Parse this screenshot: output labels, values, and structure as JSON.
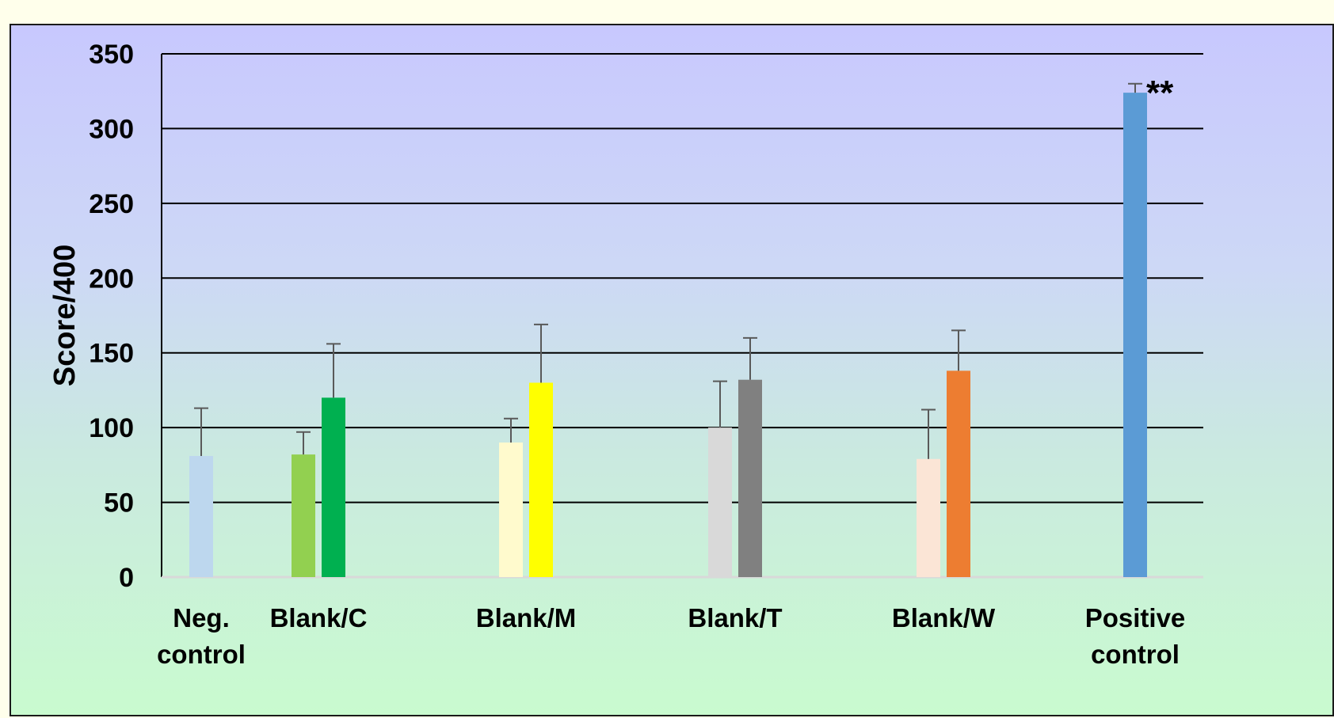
{
  "chart_data": {
    "type": "bar",
    "title": "",
    "xlabel": "",
    "ylabel": "Score/400",
    "ylim": [
      0,
      350
    ],
    "yticks": [
      0,
      50,
      100,
      150,
      200,
      250,
      300,
      350
    ],
    "grid": true,
    "legend": "none",
    "categories": [
      {
        "label": [
          "Neg.",
          "control"
        ],
        "bars": [
          {
            "value": 81,
            "error": 32,
            "color": "#bdd7ee"
          }
        ]
      },
      {
        "label": [
          "Blank/C"
        ],
        "bars": [
          {
            "value": 82,
            "error": 15,
            "color": "#92d050"
          },
          {
            "value": 120,
            "error": 36,
            "color": "#00b050"
          }
        ]
      },
      {
        "label": [
          "Blank/M"
        ],
        "bars": [
          {
            "value": 90,
            "error": 16,
            "color": "#fffacd"
          },
          {
            "value": 130,
            "error": 39,
            "color": "#ffff00"
          }
        ]
      },
      {
        "label": [
          "Blank/T"
        ],
        "bars": [
          {
            "value": 100,
            "error": 31,
            "color": "#d9d9d9"
          },
          {
            "value": 132,
            "error": 28,
            "color": "#808080"
          }
        ]
      },
      {
        "label": [
          "Blank/W"
        ],
        "bars": [
          {
            "value": 79,
            "error": 33,
            "color": "#fbe5d6"
          },
          {
            "value": 138,
            "error": 27,
            "color": "#ed7d31"
          }
        ]
      },
      {
        "label": [
          "Positive",
          "control"
        ],
        "bars": [
          {
            "value": 324,
            "error": 6,
            "color": "#5b9bd5",
            "annotation": "**"
          }
        ]
      }
    ]
  }
}
